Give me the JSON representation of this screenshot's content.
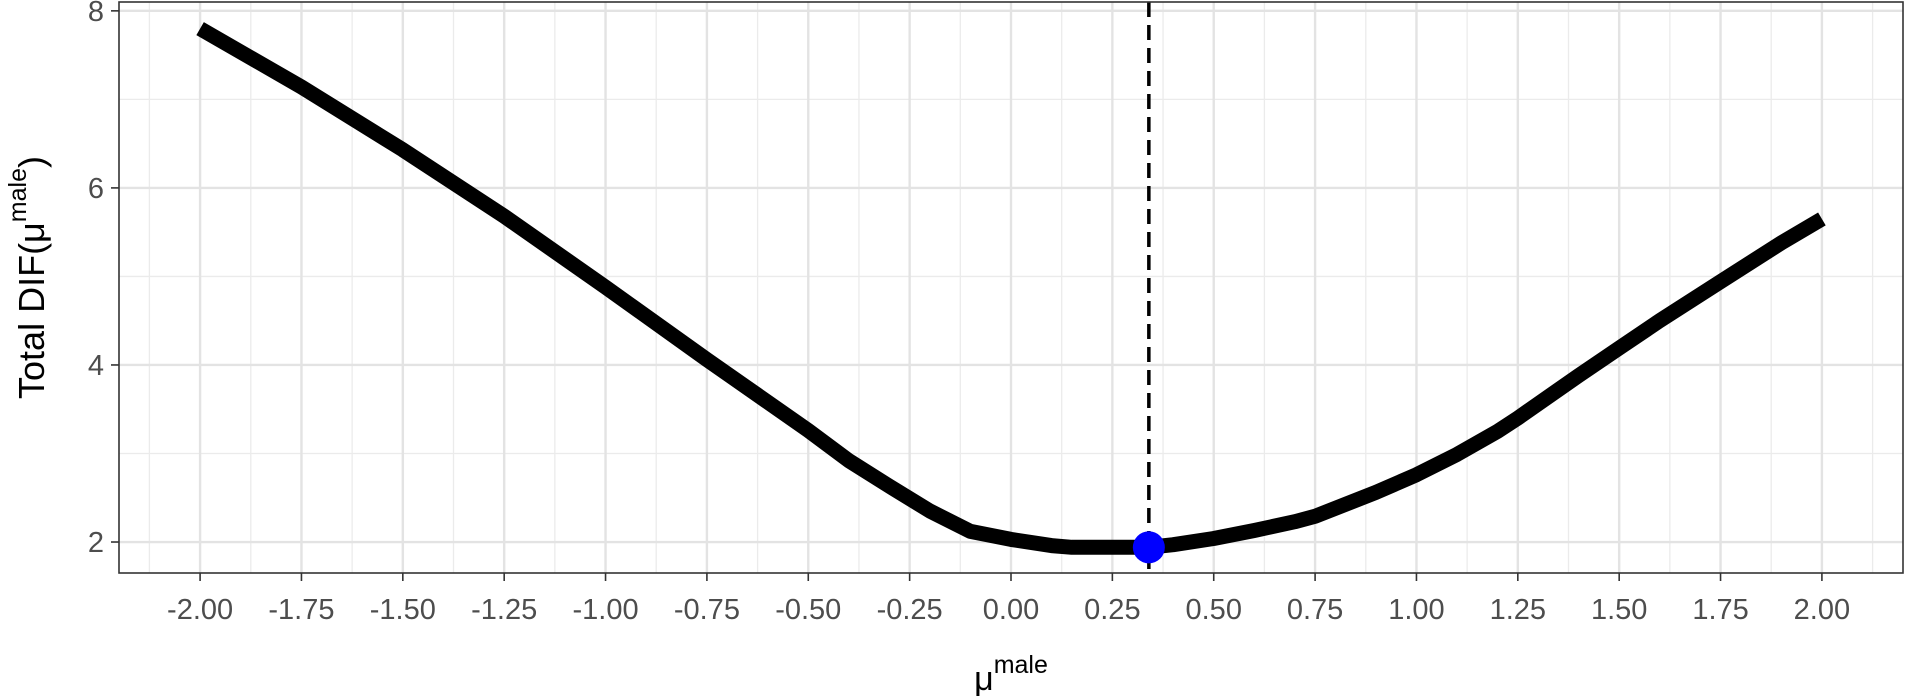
{
  "chart_data": {
    "type": "line",
    "xlabel": {
      "base": "μ",
      "sup": "male"
    },
    "ylabel": {
      "base": "Total  DIF(μ",
      "sup": "male",
      "close": ")"
    },
    "xlim": [
      -2.2,
      2.2
    ],
    "ylim": [
      1.65,
      8.1
    ],
    "x_ticks": [
      -2.0,
      -1.75,
      -1.5,
      -1.25,
      -1.0,
      -0.75,
      -0.5,
      -0.25,
      0.0,
      0.25,
      0.5,
      0.75,
      1.0,
      1.25,
      1.5,
      1.75,
      2.0
    ],
    "x_tick_labels": [
      "-2.00",
      "-1.75",
      "-1.50",
      "-1.25",
      "-1.00",
      "-0.75",
      "-0.50",
      "-0.25",
      "0.00",
      "0.25",
      "0.50",
      "0.75",
      "1.00",
      "1.25",
      "1.50",
      "1.75",
      "2.00"
    ],
    "x_minor_ticks": [
      -2.125,
      -1.875,
      -1.625,
      -1.375,
      -1.125,
      -0.875,
      -0.625,
      -0.375,
      -0.125,
      0.125,
      0.375,
      0.625,
      0.875,
      1.125,
      1.375,
      1.625,
      1.875,
      2.125
    ],
    "y_ticks": [
      2,
      4,
      6,
      8
    ],
    "y_tick_labels": [
      "2",
      "4",
      "6",
      "8"
    ],
    "y_minor_ticks": [
      3,
      5,
      7
    ],
    "grid": true,
    "series": [
      {
        "color": "#000000",
        "x": [
          -2.0,
          -1.75,
          -1.5,
          -1.25,
          -1.0,
          -0.75,
          -0.5,
          -0.4,
          -0.3,
          -0.2,
          -0.1,
          0.0,
          0.1,
          0.15,
          0.2,
          0.25,
          0.3,
          0.34,
          0.4,
          0.5,
          0.6,
          0.7,
          0.75,
          0.9,
          1.0,
          1.1,
          1.2,
          1.25,
          1.4,
          1.5,
          1.6,
          1.75,
          1.9,
          2.0
        ],
        "y": [
          7.8,
          7.14,
          6.43,
          5.68,
          4.88,
          4.06,
          3.26,
          2.92,
          2.63,
          2.35,
          2.12,
          2.03,
          1.96,
          1.94,
          1.94,
          1.94,
          1.94,
          1.94,
          1.97,
          2.04,
          2.13,
          2.23,
          2.29,
          2.56,
          2.76,
          2.99,
          3.25,
          3.4,
          3.88,
          4.19,
          4.5,
          4.94,
          5.38,
          5.65
        ]
      }
    ],
    "highlight": {
      "x": 0.34,
      "y": 1.94,
      "color": "#0000ff"
    },
    "vline": {
      "x": 0.34,
      "style": "dashed",
      "color": "#000000"
    }
  }
}
